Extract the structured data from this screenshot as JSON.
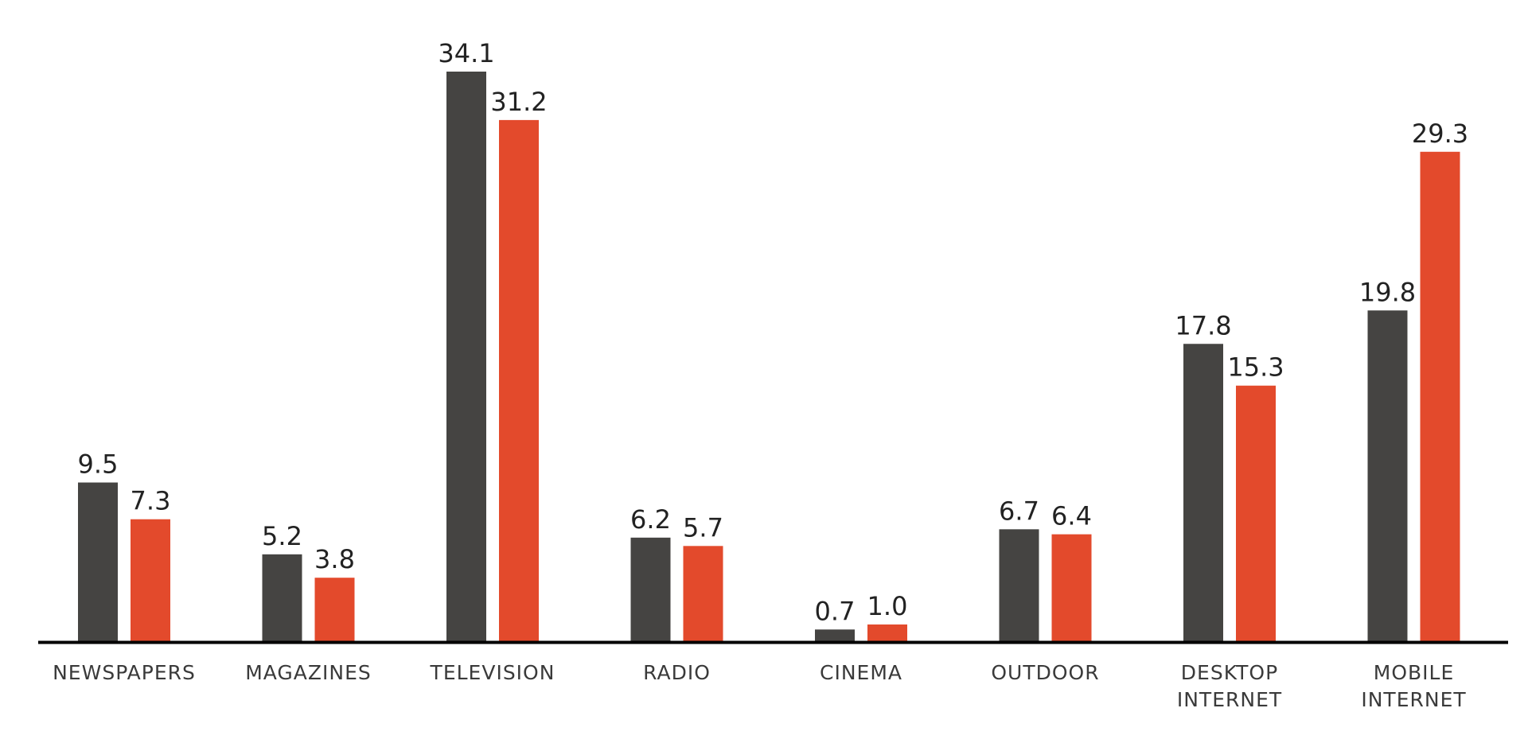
{
  "chart_data": {
    "type": "bar",
    "title": "",
    "xlabel": "",
    "ylabel": "",
    "categories": [
      [
        "NEWSPAPERS"
      ],
      [
        "MAGAZINES"
      ],
      [
        "TELEVISION"
      ],
      [
        "RADIO"
      ],
      [
        "CINEMA"
      ],
      [
        "OUTDOOR"
      ],
      [
        "DESKTOP",
        "INTERNET"
      ],
      [
        "MOBILE",
        "INTERNET"
      ]
    ],
    "series": [
      {
        "color": "#454442",
        "values": [
          9.5,
          5.2,
          34.1,
          6.2,
          0.7,
          6.7,
          17.8,
          19.8
        ],
        "labels": [
          "9.5",
          "5.2",
          "34.1",
          "6.2",
          "0.7",
          "6.7",
          "17.8",
          "19.8"
        ]
      },
      {
        "color": "#e34a2c",
        "values": [
          7.3,
          3.8,
          31.2,
          5.7,
          1.0,
          6.4,
          15.3,
          29.3
        ],
        "labels": [
          "7.3",
          "3.8",
          "31.2",
          "5.7",
          "1.0",
          "6.4",
          "15.3",
          "29.3"
        ]
      }
    ],
    "ylim": [
      0,
      34.1
    ],
    "grid": false,
    "legend": "none",
    "axis_color": "#000000"
  }
}
